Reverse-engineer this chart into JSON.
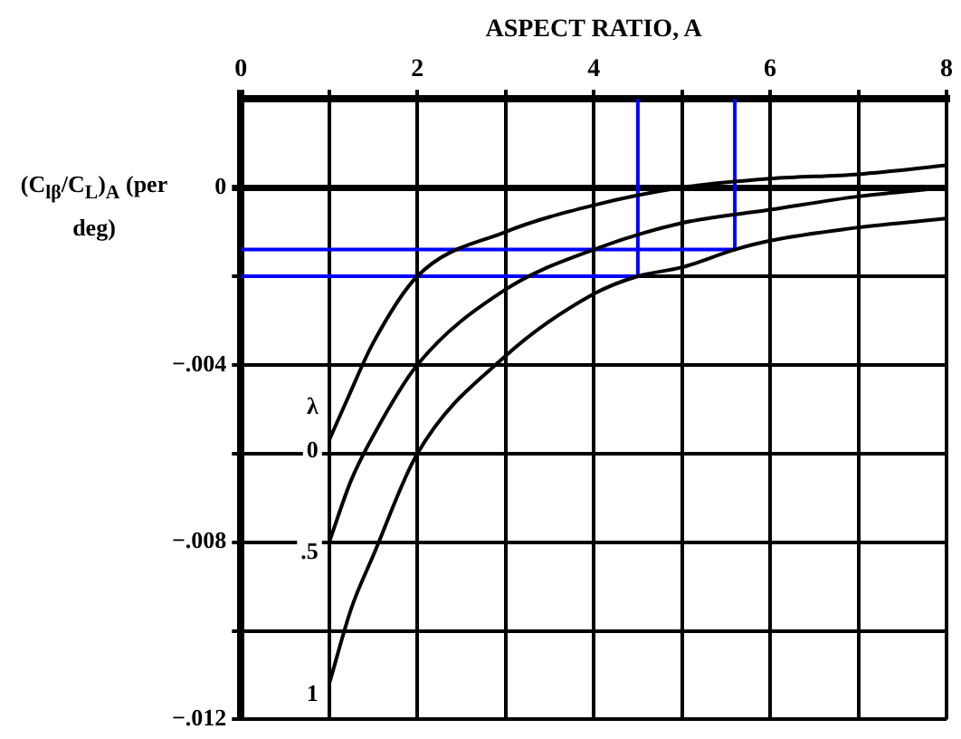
{
  "chart_data": {
    "type": "line",
    "xlabel": "ASPECT RATIO, A",
    "ylabel": "(C$_{lβ}$/C$_{L}$)$_{A}$ (per deg)",
    "legend_title": "λ",
    "xlim": [
      0,
      8
    ],
    "ylim": [
      -0.012,
      0.002
    ],
    "xticks": [
      0,
      {
        "value": 1,
        "label": null
      },
      2,
      {
        "value": 3,
        "label": null
      },
      4,
      {
        "value": 5,
        "label": null
      },
      6,
      {
        "value": 7,
        "label": null
      },
      8
    ],
    "yticks": [
      {
        "value": -0.012,
        "label": "−.012"
      },
      {
        "value": -0.01,
        "label": null
      },
      {
        "value": -0.008,
        "label": "−.008"
      },
      {
        "value": -0.006,
        "label": null
      },
      {
        "value": -0.004,
        "label": "−.004"
      },
      {
        "value": -0.002,
        "label": null
      },
      0
    ],
    "grid": true,
    "marker": "none",
    "line_style": "solid",
    "series": [
      {
        "name": "0",
        "color": "#000000",
        "x": [
          1,
          1.2,
          1.5,
          2,
          3,
          4,
          5,
          6,
          7,
          8
        ],
        "values": [
          -0.0057,
          -0.0048,
          -0.0035,
          -0.002,
          -0.001,
          -0.0004,
          0,
          0.0002,
          0.0003,
          0.0005
        ]
      },
      {
        "name": ".5",
        "color": "#000000",
        "x": [
          1,
          1.25,
          1.5,
          2,
          3,
          4,
          5,
          6,
          7,
          8
        ],
        "values": [
          -0.008,
          -0.0066,
          -0.0056,
          -0.004,
          -0.0023,
          -0.0014,
          -0.0008,
          -0.0005,
          -0.0002,
          0
        ]
      },
      {
        "name": "1",
        "color": "#000000",
        "x": [
          1,
          1.25,
          1.5,
          2,
          3,
          4,
          4.5,
          5,
          5.6,
          6,
          7,
          8
        ],
        "values": [
          -0.0112,
          -0.0095,
          -0.0083,
          -0.006,
          -0.0038,
          -0.0024,
          -0.002,
          -0.0018,
          -0.0014,
          -0.0012,
          -0.0009,
          -0.0007
        ]
      },
      {
        "type": "line",
        "color": "#0000ff",
        "x": [
          0,
          4.5,
          4.5
        ],
        "values": [
          -0.002,
          -0.002,
          0.002
        ]
      },
      {
        "type": "line",
        "color": "#0000ff",
        "x": [
          0,
          5.6,
          5.6
        ],
        "values": [
          -0.0014,
          -0.0014,
          0.002
        ]
      }
    ]
  }
}
